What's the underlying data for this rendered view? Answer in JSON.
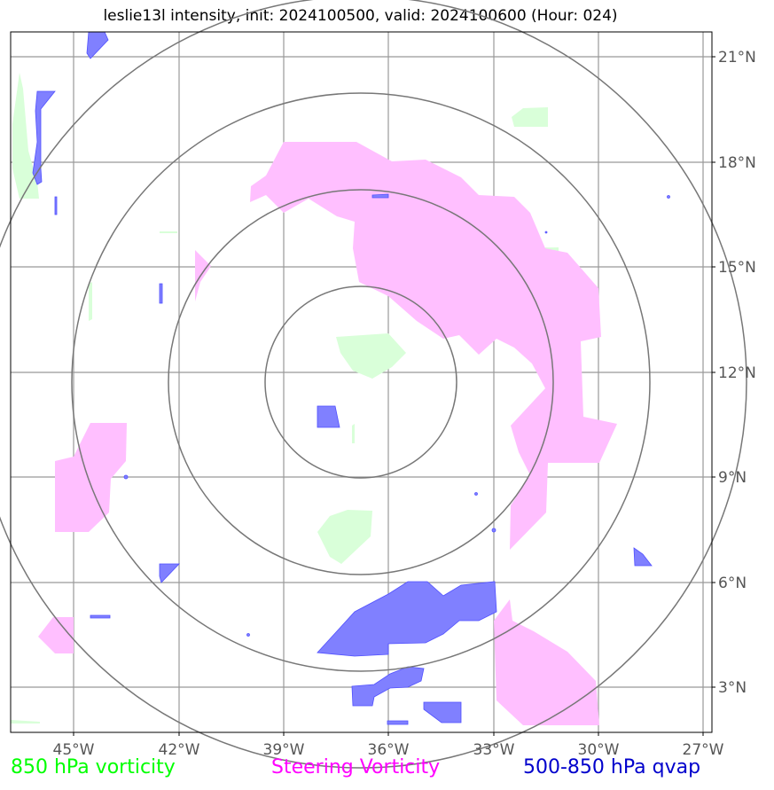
{
  "title": "leslie13l intensity, init: 2024100500, valid: 2024100600 (Hour: 024)",
  "lon_labels": [
    "45°W",
    "42°W",
    "39°W",
    "36°W",
    "33°W",
    "30°W",
    "27°W"
  ],
  "lat_labels": [
    "21°N",
    "18°N",
    "15°N",
    "12°N",
    "9°N",
    "6°N",
    "3°N"
  ],
  "legend": [
    {
      "label": "850 hPa vorticity",
      "color": "#00ff00"
    },
    {
      "label": "Steering Vorticity",
      "color": "#ff00ff"
    },
    {
      "label": "500-850 hPa qvap",
      "color": "#0000cc"
    }
  ],
  "colors": {
    "vort850_fill": "#d9ffd9",
    "steering_fill": "#ffbfff",
    "qvap_fill": "#8080ff",
    "grid": "#999999",
    "rings": "#777777"
  }
}
